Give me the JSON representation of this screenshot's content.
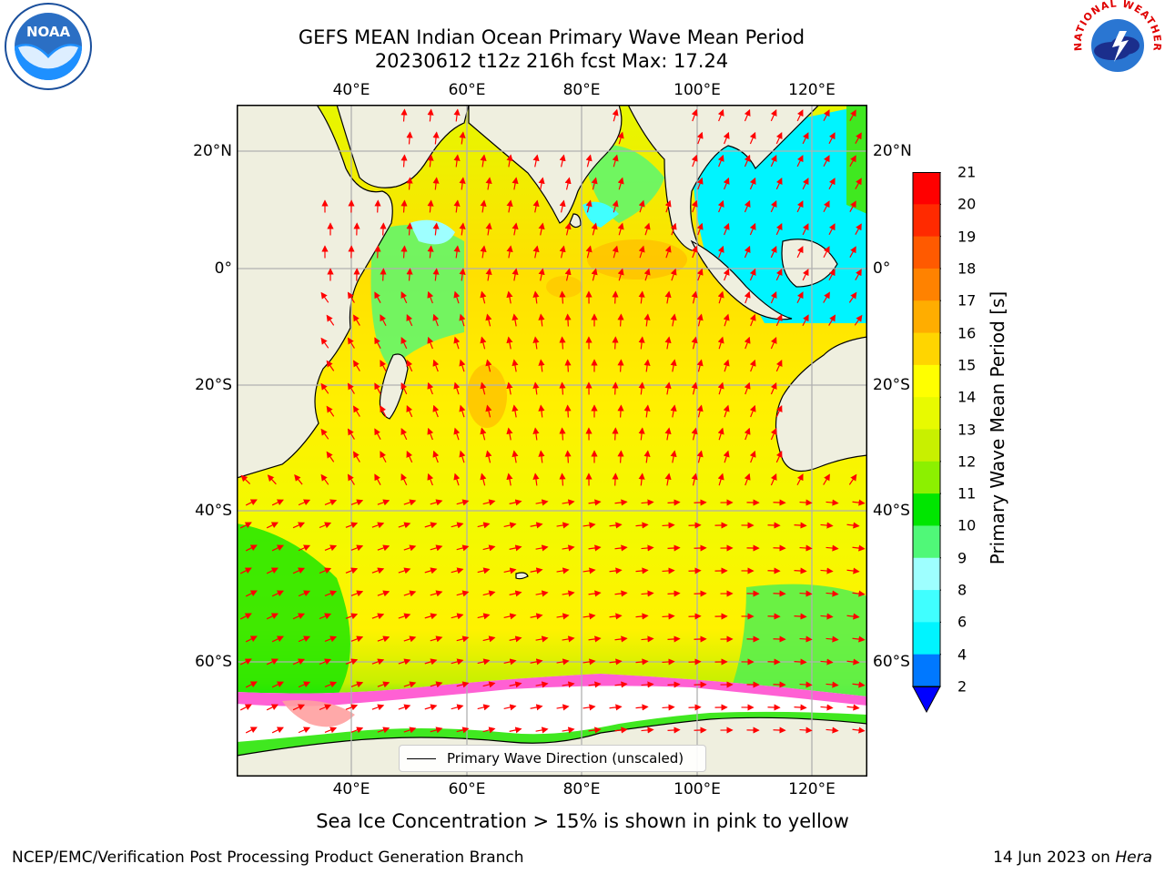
{
  "header": {
    "title_line1": "GEFS MEAN Indian Ocean Primary Wave Mean Period",
    "title_line2": "20230612 t12z 216h fcst   Max: 17.24",
    "noaa_logo_text": "NOAA",
    "nws_logo_text": "NATIONAL WEATHER SERVICE"
  },
  "map": {
    "lon_ticks": [
      "40°E",
      "60°E",
      "80°E",
      "100°E",
      "120°E"
    ],
    "lat_ticks": [
      "20°N",
      "0°",
      "20°S",
      "40°S",
      "60°S"
    ],
    "colors": {
      "land": "#efefdf",
      "ice": "#ffffff",
      "arrow": "#ff0000",
      "grid": "#b0b0b0",
      "ice_fringe": "#ff44cc"
    }
  },
  "colorbar": {
    "title": "Primary Wave Mean Period [s]",
    "labels": [
      "21",
      "20",
      "19",
      "18",
      "17",
      "16",
      "15",
      "14",
      "13",
      "12",
      "11",
      "10",
      "9",
      "8",
      "6",
      "4",
      "2"
    ],
    "colors": [
      "#ff0000",
      "#ff2a00",
      "#ff5a00",
      "#ff8200",
      "#ffad00",
      "#ffd500",
      "#ffff00",
      "#e8fa00",
      "#c8f000",
      "#8cf000",
      "#00e600",
      "#50f878",
      "#9effff",
      "#40ffff",
      "#00f4ff",
      "#0078ff",
      "#0000ff"
    ]
  },
  "legend": {
    "label": "Primary Wave Direction (unscaled)"
  },
  "notes": {
    "ice": "Sea Ice Concentration > 15% is shown in pink to yellow"
  },
  "footer": {
    "left": "NCEP/EMC/Verification Post Processing Product Generation Branch",
    "date": "14 Jun 2023 on ",
    "machine": "Hera"
  }
}
